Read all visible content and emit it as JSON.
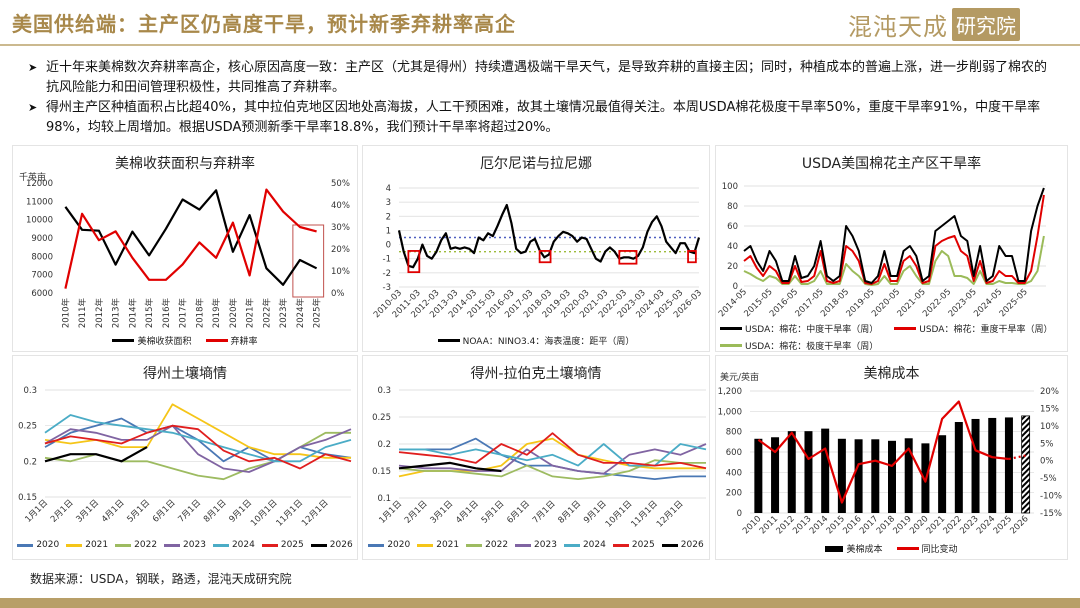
{
  "header": {
    "title": "美国供给端：主产区仍高度干旱，预计新季弃耕率高企",
    "logo_main": "混沌天成",
    "logo_box": "研究院"
  },
  "bullets": [
    {
      "icon": "arrow-bullet-icon",
      "text": "近十年来美棉数次弃耕率高企，核心原因高度一致：主产区（尤其是得州）持续遭遇极端干旱天气，是导致弃耕的直接主因；同时，种植成本的普遍上涨，进一步削弱了棉农的抗风险能力和田间管理积极性，共同推高了弃耕率。"
    },
    {
      "icon": "arrow-bullet-icon",
      "text": "得州主产区种植面积占比超40%，其中拉伯克地区因地处高海拔，人工干预困难，故其土壤情况最值得关注。本周USDA棉花极度干旱率50%，重度干旱率91%，中度干旱率98%，均较上周增加。根据USDA预测新季干旱率18.8%，我们预计干旱率将超过20%。"
    }
  ],
  "footer": {
    "source": "数据来源：USDA，钢联，路透，混沌天成研究院"
  },
  "chart_data": [
    {
      "type": "line",
      "title": "美棉收获面积与弃耕率",
      "ylabel": "千英亩",
      "categories": [
        "2010年",
        "2011年",
        "2012年",
        "2013年",
        "2014年",
        "2015年",
        "2016年",
        "2017年",
        "2018年",
        "2019年",
        "2020年",
        "2021年",
        "2022年",
        "2023年",
        "2024年",
        "2025年"
      ],
      "ylim_left": [
        6000,
        12000
      ],
      "ylim_right": [
        0,
        50
      ],
      "yticks_left": [
        "6000",
        "7000",
        "8000",
        "9000",
        "10000",
        "11000",
        "12000"
      ],
      "yticks_right": [
        "0%",
        "10%",
        "20%",
        "30%",
        "40%",
        "50%"
      ],
      "highlight_categories": [
        "2024年",
        "2025年"
      ],
      "highlight_color": "#c0504d",
      "series": [
        {
          "name": "美棉收获面积",
          "axis": "left",
          "color": "#000000",
          "values": [
            10700,
            9450,
            9400,
            7550,
            9350,
            8050,
            9500,
            11100,
            10550,
            11600,
            8250,
            10250,
            7350,
            6450,
            7800,
            7350
          ]
        },
        {
          "name": "弃耕率",
          "axis": "right",
          "color": "#e00000",
          "values": [
            2,
            36,
            24,
            28,
            16,
            6,
            6,
            13,
            23,
            16,
            32,
            8,
            47,
            37,
            30,
            28
          ]
        }
      ]
    },
    {
      "type": "line",
      "title": "厄尔尼诺与拉尼娜",
      "ylim": [
        -3,
        4
      ],
      "yticks": [
        "-3",
        "-2",
        "-1",
        "0",
        "1",
        "2",
        "3",
        "4"
      ],
      "xticks": [
        "2010-03",
        "2011-03",
        "2012-03",
        "2013-03",
        "2014-03",
        "2015-03",
        "2016-03",
        "2017-03",
        "2018-03",
        "2019-03",
        "2020-03",
        "2021-03",
        "2022-03",
        "2023-03",
        "2024-03",
        "2025-03",
        "2026-03"
      ],
      "reference_lines": [
        {
          "value": 0.5,
          "color": "#4f5fbf"
        },
        {
          "value": -0.5,
          "color": "#9dbb3a"
        }
      ],
      "highlight_periods": [
        [
          "2010-09",
          "2011-04"
        ],
        [
          "2017-09",
          "2018-04"
        ],
        [
          "2021-12",
          "2022-11"
        ],
        [
          "2025-08",
          "2026-01"
        ]
      ],
      "highlight_color": "#e00000",
      "series": [
        {
          "name": "NOAA：NINO3.4：海表温度：距平（周）",
          "color": "#000000",
          "x": [
            "2010-03",
            "2010-06",
            "2010-09",
            "2010-12",
            "2011-03",
            "2011-06",
            "2011-09",
            "2011-12",
            "2012-03",
            "2012-06",
            "2012-09",
            "2012-12",
            "2013-03",
            "2013-06",
            "2013-09",
            "2013-12",
            "2014-03",
            "2014-06",
            "2014-09",
            "2014-12",
            "2015-03",
            "2015-06",
            "2015-09",
            "2015-12",
            "2016-03",
            "2016-06",
            "2016-09",
            "2016-12",
            "2017-03",
            "2017-06",
            "2017-09",
            "2017-12",
            "2018-03",
            "2018-06",
            "2018-09",
            "2018-12",
            "2019-03",
            "2019-06",
            "2019-09",
            "2019-12",
            "2020-03",
            "2020-06",
            "2020-09",
            "2020-12",
            "2021-03",
            "2021-06",
            "2021-09",
            "2021-12",
            "2022-03",
            "2022-06",
            "2022-09",
            "2022-12",
            "2023-03",
            "2023-06",
            "2023-09",
            "2023-12",
            "2024-03",
            "2024-06",
            "2024-09",
            "2024-12",
            "2025-03",
            "2025-06",
            "2025-09",
            "2025-12",
            "2026-03"
          ],
          "values": [
            1,
            -0.5,
            -1.5,
            -1.6,
            -1,
            0,
            -0.8,
            -1,
            -0.5,
            0.3,
            0.8,
            -0.3,
            -0.2,
            -0.3,
            -0.2,
            -0.3,
            -0.6,
            0.5,
            0.3,
            0.8,
            0.6,
            1.3,
            2.1,
            2.8,
            1.5,
            -0.3,
            -0.6,
            -0.5,
            0.2,
            0.4,
            -0.4,
            -0.9,
            -0.7,
            0.2,
            0.6,
            0.9,
            0.8,
            0.6,
            0.2,
            0.5,
            0.4,
            -0.3,
            -1,
            -1.2,
            -0.5,
            -0.2,
            -0.5,
            -1,
            -0.9,
            -0.9,
            -1,
            -0.8,
            -0.2,
            0.9,
            1.6,
            2.0,
            1.3,
            0.2,
            -0.2,
            -0.6,
            0.1,
            0.1,
            -0.5,
            -0.6,
            0.5
          ]
        }
      ]
    },
    {
      "type": "line",
      "title": "USDA美国棉花主产区干旱率",
      "ylim": [
        0,
        100
      ],
      "yticks": [
        "0",
        "20",
        "40",
        "60",
        "80",
        "100"
      ],
      "xticks": [
        "2014-05",
        "2015-05",
        "2016-05",
        "2017-05",
        "2018-05",
        "2019-05",
        "2020-05",
        "2021-05",
        "2022-05",
        "2023-05",
        "2024-05",
        "2025-05"
      ],
      "x": [
        "2014-05",
        "2014-08",
        "2014-11",
        "2015-02",
        "2015-05",
        "2015-08",
        "2015-11",
        "2016-02",
        "2016-05",
        "2016-08",
        "2016-11",
        "2017-02",
        "2017-05",
        "2017-08",
        "2017-11",
        "2018-02",
        "2018-05",
        "2018-08",
        "2018-11",
        "2019-02",
        "2019-05",
        "2019-08",
        "2019-11",
        "2020-02",
        "2020-05",
        "2020-08",
        "2020-11",
        "2021-02",
        "2021-05",
        "2021-08",
        "2021-11",
        "2022-02",
        "2022-05",
        "2022-08",
        "2022-11",
        "2023-02",
        "2023-05",
        "2023-08",
        "2023-11",
        "2024-02",
        "2024-05",
        "2024-08",
        "2024-11",
        "2025-02",
        "2025-05",
        "2025-08",
        "2025-11",
        "2026-02"
      ],
      "series": [
        {
          "name": "USDA：棉花：中度干旱率（周）",
          "color": "#000000",
          "values": [
            35,
            40,
            25,
            15,
            35,
            25,
            5,
            5,
            30,
            8,
            10,
            20,
            45,
            10,
            5,
            10,
            60,
            50,
            35,
            5,
            3,
            10,
            35,
            10,
            10,
            35,
            40,
            30,
            5,
            10,
            55,
            60,
            65,
            70,
            50,
            45,
            10,
            40,
            5,
            10,
            40,
            30,
            30,
            5,
            5,
            55,
            80,
            98
          ]
        },
        {
          "name": "USDA：棉花：重度干旱率（周）",
          "color": "#e00000",
          "values": [
            25,
            30,
            18,
            10,
            20,
            15,
            3,
            3,
            20,
            4,
            5,
            10,
            35,
            5,
            3,
            5,
            40,
            35,
            25,
            3,
            2,
            5,
            22,
            5,
            5,
            25,
            30,
            20,
            3,
            5,
            40,
            45,
            48,
            50,
            35,
            30,
            5,
            25,
            3,
            5,
            15,
            10,
            10,
            3,
            3,
            15,
            50,
            91
          ]
        },
        {
          "name": "USDA：棉花：极度干旱率（周）",
          "color": "#9bbb59",
          "values": [
            15,
            12,
            8,
            5,
            10,
            8,
            2,
            2,
            10,
            2,
            2,
            5,
            15,
            2,
            2,
            2,
            22,
            15,
            10,
            2,
            1,
            2,
            10,
            2,
            2,
            15,
            20,
            10,
            2,
            2,
            25,
            35,
            30,
            10,
            10,
            8,
            2,
            15,
            2,
            2,
            5,
            3,
            3,
            2,
            2,
            5,
            15,
            50
          ]
        }
      ]
    },
    {
      "type": "line",
      "title": "得州土壤墒情",
      "ylim": [
        0.15,
        0.3
      ],
      "yticks": [
        "0.15",
        "0.2",
        "0.25",
        "0.3"
      ],
      "xticks": [
        "1月1日",
        "2月1日",
        "3月1日",
        "4月1日",
        "5月1日",
        "6月1日",
        "7月1日",
        "8月1日",
        "9月1日",
        "10月1日",
        "11月1日",
        "12月1日"
      ],
      "series": [
        {
          "name": "2020",
          "color": "#4a78b5",
          "values": [
            0.22,
            0.24,
            0.25,
            0.26,
            0.24,
            0.25,
            0.23,
            0.2,
            0.22,
            0.2,
            0.22,
            0.21,
            0.205
          ]
        },
        {
          "name": "2021",
          "color": "#f5c518",
          "values": [
            0.23,
            0.225,
            0.23,
            0.22,
            0.22,
            0.28,
            0.26,
            0.24,
            0.22,
            0.21,
            0.21,
            0.205,
            0.205
          ]
        },
        {
          "name": "2022",
          "color": "#9dbb61",
          "values": [
            0.205,
            0.2,
            0.21,
            0.2,
            0.2,
            0.19,
            0.18,
            0.175,
            0.19,
            0.2,
            0.22,
            0.24,
            0.24
          ]
        },
        {
          "name": "2023",
          "color": "#8064a2",
          "values": [
            0.225,
            0.245,
            0.24,
            0.23,
            0.23,
            0.25,
            0.21,
            0.19,
            0.185,
            0.2,
            0.22,
            0.23,
            0.245
          ]
        },
        {
          "name": "2024",
          "color": "#4bacc6",
          "values": [
            0.24,
            0.265,
            0.255,
            0.25,
            0.245,
            0.24,
            0.23,
            0.22,
            0.21,
            0.2,
            0.2,
            0.22,
            0.23
          ]
        },
        {
          "name": "2025",
          "color": "#e01e1e",
          "values": [
            0.225,
            0.235,
            0.23,
            0.225,
            0.24,
            0.25,
            0.245,
            0.215,
            0.2,
            0.205,
            0.19,
            0.21,
            0.2
          ]
        },
        {
          "name": "2026",
          "color": "#000000",
          "values": [
            0.2,
            0.21,
            0.21,
            0.2,
            0.22
          ]
        }
      ]
    },
    {
      "type": "line",
      "title": "得州-拉伯克土壤墒情",
      "ylim": [
        0.1,
        0.3
      ],
      "yticks": [
        "0.1",
        "0.15",
        "0.2",
        "0.25",
        "0.3"
      ],
      "xticks": [
        "1月1日",
        "2月1日",
        "3月1日",
        "4月1日",
        "5月1日",
        "6月1日",
        "7月1日",
        "8月1日",
        "9月1日",
        "10月1日",
        "11月1日",
        "12月1日"
      ],
      "series": [
        {
          "name": "2020",
          "color": "#4a78b5",
          "values": [
            0.19,
            0.19,
            0.19,
            0.21,
            0.18,
            0.16,
            0.16,
            0.15,
            0.145,
            0.14,
            0.135,
            0.14,
            0.14
          ]
        },
        {
          "name": "2021",
          "color": "#f5c518",
          "values": [
            0.14,
            0.15,
            0.15,
            0.15,
            0.16,
            0.2,
            0.21,
            0.18,
            0.17,
            0.16,
            0.155,
            0.155,
            0.155
          ]
        },
        {
          "name": "2022",
          "color": "#9dbb61",
          "values": [
            0.155,
            0.15,
            0.15,
            0.145,
            0.14,
            0.16,
            0.14,
            0.135,
            0.14,
            0.15,
            0.17,
            0.165,
            0.165
          ]
        },
        {
          "name": "2023",
          "color": "#8064a2",
          "values": [
            0.16,
            0.155,
            0.155,
            0.15,
            0.15,
            0.19,
            0.16,
            0.15,
            0.145,
            0.18,
            0.19,
            0.18,
            0.2
          ]
        },
        {
          "name": "2024",
          "color": "#4bacc6",
          "values": [
            0.19,
            0.19,
            0.18,
            0.19,
            0.18,
            0.17,
            0.18,
            0.16,
            0.2,
            0.16,
            0.16,
            0.2,
            0.19
          ]
        },
        {
          "name": "2025",
          "color": "#e01e1e",
          "values": [
            0.185,
            0.18,
            0.175,
            0.165,
            0.2,
            0.18,
            0.22,
            0.18,
            0.165,
            0.165,
            0.16,
            0.165,
            0.155
          ]
        },
        {
          "name": "2026",
          "color": "#000000",
          "values": [
            0.155,
            0.16,
            0.165,
            0.155,
            0.15
          ]
        }
      ]
    },
    {
      "type": "bar",
      "title": "美棉成本",
      "ylabel": "美元/英亩",
      "categories": [
        "2010",
        "2011",
        "2012",
        "2013",
        "2014",
        "2015",
        "2016",
        "2017",
        "2018",
        "2019",
        "2020",
        "2021",
        "2022",
        "2023",
        "2024",
        "2025",
        "2026"
      ],
      "ylim_left": [
        0,
        1200
      ],
      "ylim_right": [
        -15,
        20
      ],
      "yticks_left": [
        "0",
        "200",
        "400",
        "600",
        "800",
        "1,000",
        "1,200"
      ],
      "yticks_right": [
        "-15%",
        "-10%",
        "-5%",
        "0%",
        "5%",
        "10%",
        "15%",
        "20%"
      ],
      "forecast_categories": [
        "2026"
      ],
      "series": [
        {
          "name": "美棉成本",
          "axis": "left",
          "color": "#000000",
          "values": [
            730,
            745,
            805,
            805,
            830,
            730,
            725,
            725,
            710,
            735,
            685,
            765,
            895,
            925,
            935,
            940,
            955
          ]
        },
        {
          "name": "同比变动",
          "axis": "right",
          "color": "#e00000",
          "values": [
            6,
            2.5,
            8,
            0.5,
            3.5,
            -12,
            -1,
            0,
            -1.5,
            3.5,
            -6,
            12,
            17,
            3,
            1,
            0.5,
            1.5
          ]
        }
      ]
    }
  ]
}
